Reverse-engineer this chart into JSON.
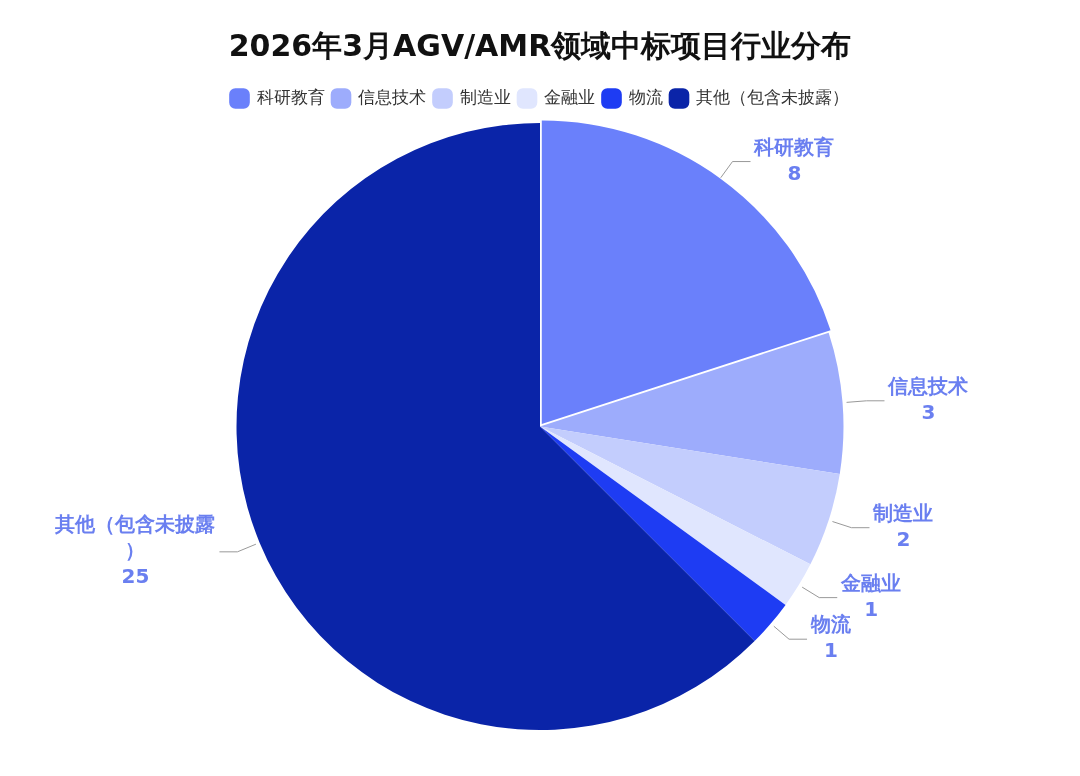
{
  "chart_data": {
    "type": "pie",
    "title": "2026年3月AGV/AMR领域中标项目行业分布",
    "categories": [
      "科研教育",
      "信息技术",
      "制造业",
      "金融业",
      "物流",
      "其他（包含未披露）"
    ],
    "values": [
      8,
      3,
      2,
      1,
      1,
      25
    ],
    "colors": [
      "#6a80fb",
      "#9dacfc",
      "#c3cdfd",
      "#e0e6fe",
      "#1e3cf3",
      "#0a24a8"
    ],
    "legend": "top",
    "data_labels": true
  }
}
